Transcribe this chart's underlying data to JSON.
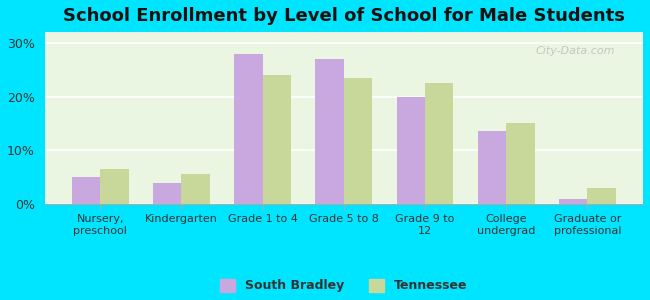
{
  "title": "School Enrollment by Level of School for Male Students",
  "categories": [
    "Nursery,\npreschool",
    "Kindergarten",
    "Grade 1 to 4",
    "Grade 5 to 8",
    "Grade 9 to\n12",
    "College\nundergrad",
    "Graduate or\nprofessional"
  ],
  "south_bradley": [
    5.0,
    4.0,
    28.0,
    27.0,
    20.0,
    13.5,
    1.0
  ],
  "tennessee": [
    6.5,
    5.5,
    24.0,
    23.5,
    22.5,
    15.0,
    3.0
  ],
  "south_bradley_color": "#c9a8e0",
  "tennessee_color": "#c8d89a",
  "background_outer": "#00e5ff",
  "background_inner": "#eaf5e2",
  "yticks": [
    0,
    10,
    20,
    30
  ],
  "ylim": [
    0,
    32
  ],
  "bar_width": 0.35,
  "legend_south_bradley": "South Bradley",
  "legend_tennessee": "Tennessee",
  "watermark": "City-Data.com"
}
